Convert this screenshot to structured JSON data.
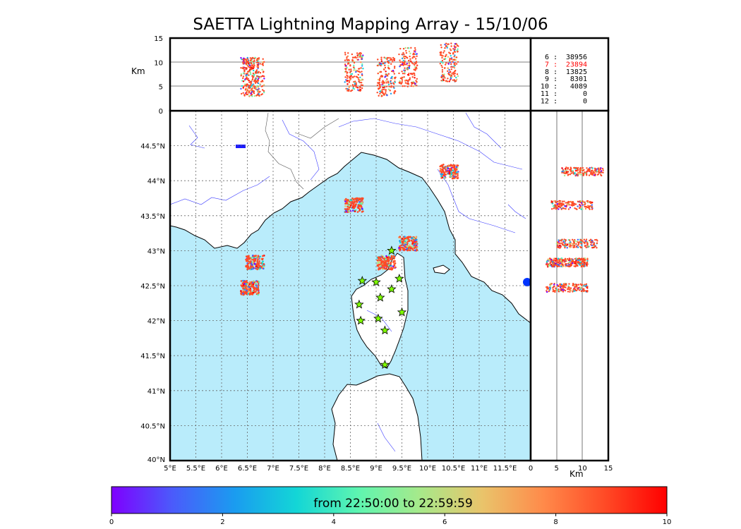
{
  "title": "SAETTA Lightning Mapping Array - 15/10/06",
  "colors": {
    "sea": "#b9ecfb",
    "land": "#ffffff",
    "rivers": "#3a3aff",
    "grid": "#555555",
    "station_fill": "#7fff00",
    "highlight_stat": "#ff0000"
  },
  "altitude_panel": {
    "ylabel": "Km",
    "yticks": [
      "0",
      "5",
      "10",
      "15"
    ]
  },
  "side_panel": {
    "xlabel": "Km",
    "xticks": [
      "0",
      "5",
      "10",
      "15"
    ]
  },
  "map": {
    "lat_labels": [
      "40°N",
      "40.5°N",
      "41°N",
      "41.5°N",
      "42°N",
      "42.5°N",
      "43°N",
      "43.5°N",
      "44°N",
      "44.5°N"
    ],
    "lon_labels": [
      "5°E",
      "5.5°E",
      "6°E",
      "6.5°E",
      "7°E",
      "7.5°E",
      "8°E",
      "8.5°E",
      "9°E",
      "9.5°E",
      "10°E",
      "10.5°E",
      "11°E",
      "11.5°E"
    ],
    "lon_range": [
      5,
      12
    ],
    "lat_range": [
      40,
      45
    ],
    "stations": [
      {
        "lon": 9.3,
        "lat": 43.0
      },
      {
        "lon": 8.73,
        "lat": 42.57
      },
      {
        "lon": 9.0,
        "lat": 42.55
      },
      {
        "lon": 9.45,
        "lat": 42.6
      },
      {
        "lon": 9.3,
        "lat": 42.45
      },
      {
        "lon": 9.08,
        "lat": 42.33
      },
      {
        "lon": 8.67,
        "lat": 42.23
      },
      {
        "lon": 9.5,
        "lat": 42.12
      },
      {
        "lon": 9.04,
        "lat": 42.03
      },
      {
        "lon": 8.7,
        "lat": 42.0
      },
      {
        "lon": 9.17,
        "lat": 41.86
      },
      {
        "lon": 9.17,
        "lat": 41.37
      }
    ],
    "lightning_clusters": [
      {
        "lon": 8.57,
        "lat": 43.65,
        "alt": 8
      },
      {
        "lon": 10.42,
        "lat": 44.13,
        "alt": 10
      },
      {
        "lon": 9.62,
        "lat": 43.1,
        "alt": 9
      },
      {
        "lon": 9.2,
        "lat": 42.83,
        "alt": 7
      },
      {
        "lon": 6.65,
        "lat": 42.83,
        "alt": 7
      },
      {
        "lon": 6.55,
        "lat": 42.47,
        "alt": 7
      }
    ]
  },
  "stats": [
    {
      "label": "6 :",
      "count": "38956",
      "highlight": false
    },
    {
      "label": "7 :",
      "count": "23894",
      "highlight": true
    },
    {
      "label": "8 :",
      "count": "13825",
      "highlight": false
    },
    {
      "label": "9 :",
      "count": "8301",
      "highlight": false
    },
    {
      "label": "10 :",
      "count": "4089",
      "highlight": false
    },
    {
      "label": "11 :",
      "count": "0",
      "highlight": false
    },
    {
      "label": "12 :",
      "count": "0",
      "highlight": false
    }
  ],
  "colorbar": {
    "caption": "from 22:50:00 to 22:59:59",
    "ticks": [
      "0",
      "2",
      "4",
      "6",
      "8",
      "10"
    ],
    "gradient": [
      "#7f00ff",
      "#4a5cfb",
      "#1a9cf0",
      "#13d6d6",
      "#5ef5b0",
      "#a7e98a",
      "#e9c46b",
      "#ff8a4a",
      "#ff4a26",
      "#ff0000"
    ]
  }
}
